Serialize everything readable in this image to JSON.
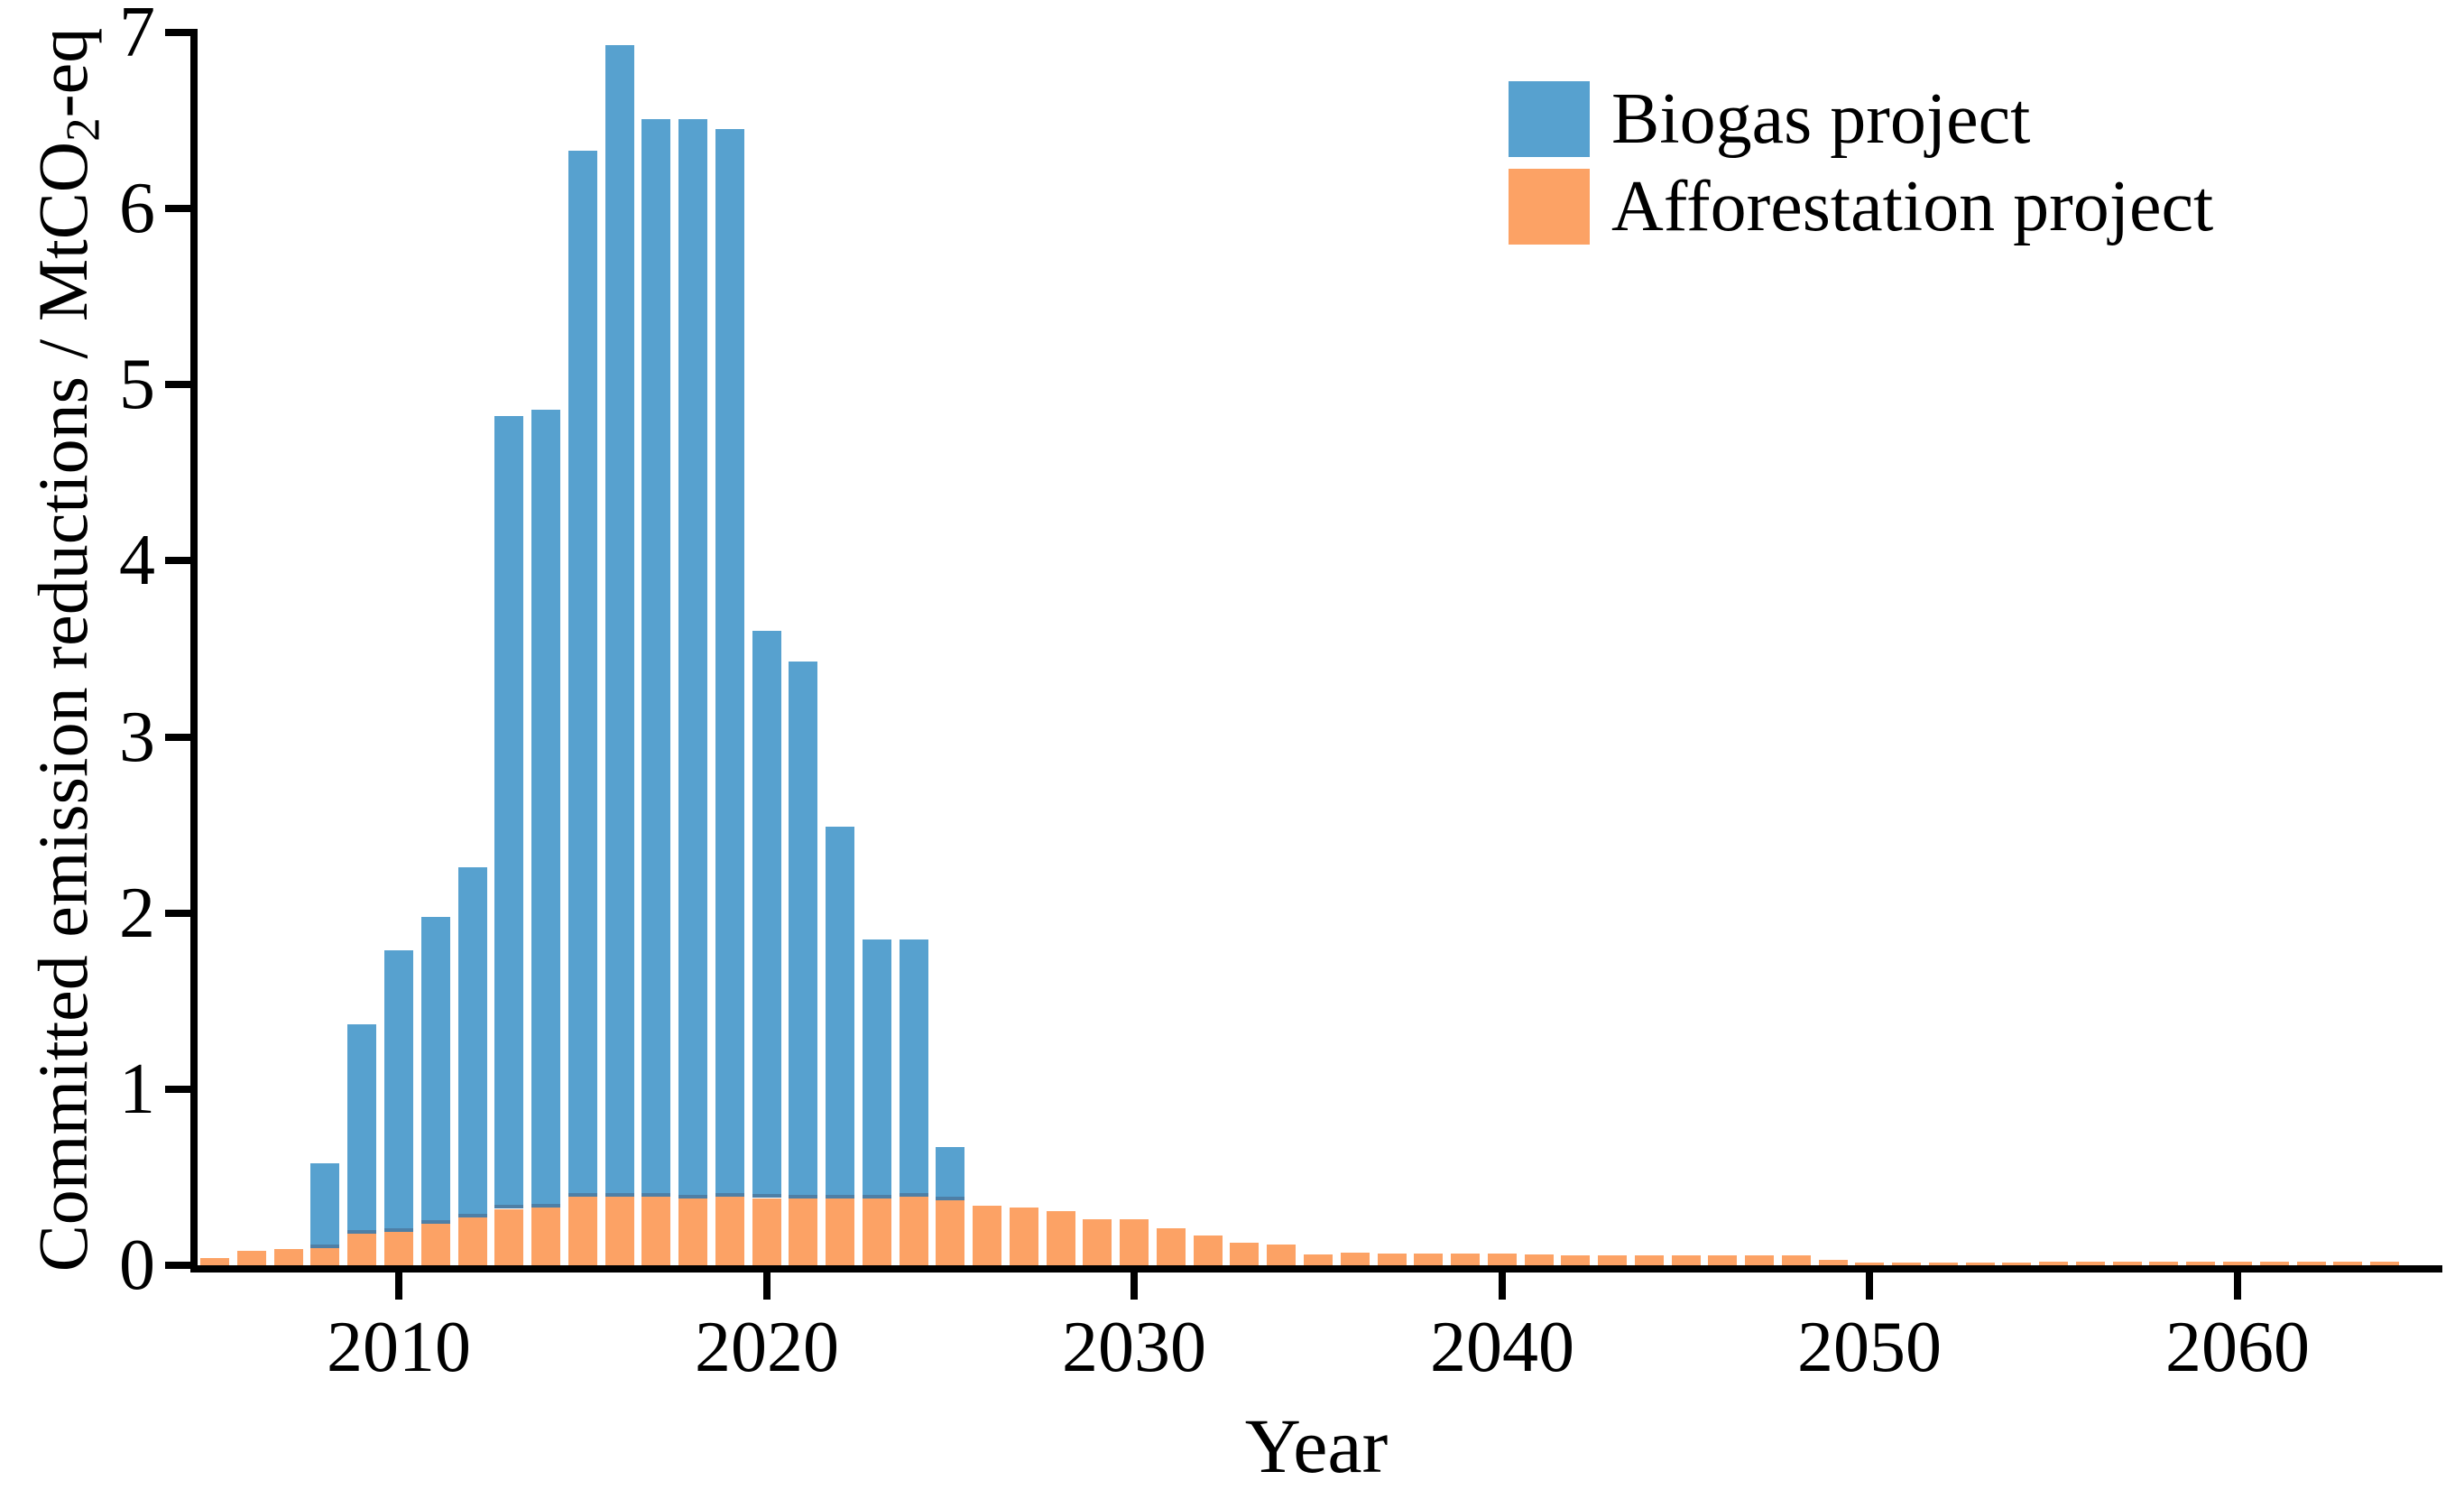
{
  "y_axis": {
    "label_parts": {
      "prefix": "Committed emission reductions / MtCO",
      "subscript": "2",
      "suffix": "-eq"
    },
    "ticks": [
      "0",
      "1",
      "2",
      "3",
      "4",
      "5",
      "6",
      "7"
    ],
    "tick_values": [
      0,
      1,
      2,
      3,
      4,
      5,
      6,
      7
    ]
  },
  "x_axis": {
    "label": "Year",
    "ticks": [
      "2010",
      "2020",
      "2030",
      "2040",
      "2050",
      "2060"
    ],
    "tick_values": [
      2010,
      2020,
      2030,
      2040,
      2050,
      2060
    ]
  },
  "legend": {
    "items": [
      {
        "label": "Biogas project",
        "color": "#57A1CF"
      },
      {
        "label": "Afforestation project",
        "color": "#FCA265"
      }
    ]
  },
  "chart_data": {
    "type": "bar",
    "stacked": true,
    "title": "",
    "xlabel": "Year",
    "ylabel": "Committed emission reductions / MtCO2-eq",
    "xlim": [
      2004.4,
      2065.6
    ],
    "ylim": [
      0,
      7
    ],
    "grid": false,
    "legend_position": "upper right",
    "x": [
      2005,
      2006,
      2007,
      2008,
      2009,
      2010,
      2011,
      2012,
      2013,
      2014,
      2015,
      2016,
      2017,
      2018,
      2019,
      2020,
      2021,
      2022,
      2023,
      2024,
      2025,
      2026,
      2027,
      2028,
      2029,
      2030,
      2031,
      2032,
      2033,
      2034,
      2035,
      2036,
      2037,
      2038,
      2039,
      2040,
      2041,
      2042,
      2043,
      2044,
      2045,
      2046,
      2047,
      2048,
      2049,
      2050,
      2051,
      2052,
      2053,
      2054,
      2055,
      2056,
      2057,
      2058,
      2059,
      2060,
      2061,
      2062,
      2063,
      2064
    ],
    "series": [
      {
        "name": "Afforestation project",
        "color": "#FCA265",
        "values": [
          0.04,
          0.08,
          0.09,
          0.1,
          0.18,
          0.19,
          0.24,
          0.27,
          0.32,
          0.33,
          0.39,
          0.39,
          0.39,
          0.38,
          0.39,
          0.38,
          0.38,
          0.38,
          0.38,
          0.39,
          0.37,
          0.34,
          0.33,
          0.31,
          0.26,
          0.26,
          0.21,
          0.17,
          0.13,
          0.12,
          0.06,
          0.07,
          0.065,
          0.068,
          0.068,
          0.068,
          0.06,
          0.058,
          0.058,
          0.058,
          0.058,
          0.058,
          0.058,
          0.058,
          0.03,
          0.017,
          0.017,
          0.017,
          0.017,
          0.017,
          0.022,
          0.022,
          0.022,
          0.022,
          0.022,
          0.022,
          0.022,
          0.022,
          0.022,
          0.022
        ]
      },
      {
        "name": "Biogas project",
        "color": "#57A1CF",
        "values": [
          0,
          0,
          0,
          0.48,
          1.19,
          1.6,
          1.74,
          1.99,
          4.5,
          4.53,
          5.94,
          6.54,
          6.12,
          6.13,
          6.06,
          3.22,
          3.05,
          2.11,
          1.47,
          1.46,
          0.3,
          0,
          0,
          0,
          0,
          0,
          0,
          0,
          0,
          0,
          0,
          0,
          0,
          0,
          0,
          0,
          0,
          0,
          0,
          0,
          0,
          0,
          0,
          0,
          0,
          0,
          0,
          0,
          0,
          0,
          0,
          0,
          0,
          0,
          0,
          0,
          0,
          0,
          0,
          0
        ]
      }
    ]
  }
}
